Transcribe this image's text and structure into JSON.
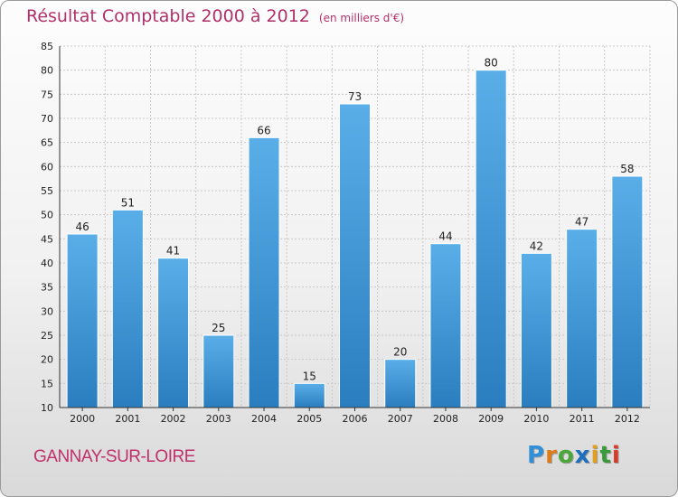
{
  "header": {
    "title": "Résultat Comptable 2000 à 2012",
    "subtitle": "(en milliers d'€)"
  },
  "footer": {
    "city": "GANNAY-SUR-LOIRE",
    "logo_letters": [
      {
        "char": "P",
        "color": "#2f8fd8"
      },
      {
        "char": "r",
        "color": "#e07b1a"
      },
      {
        "char": "o",
        "color": "#4aa83a"
      },
      {
        "char": "x",
        "color": "#1f6fbf"
      },
      {
        "char": "i",
        "color": "#e0a020"
      },
      {
        "char": "t",
        "color": "#3a9a3a"
      },
      {
        "char": "i",
        "color": "#d83a2a"
      }
    ]
  },
  "colors": {
    "bar_top": "#5aaee8",
    "bar_bottom": "#2a7ebf",
    "grid": "#c8c8c8",
    "title": "#b0306a"
  },
  "chart_data": {
    "type": "bar",
    "title": "Résultat Comptable 2000 à 2012",
    "subtitle": "(en milliers d'€)",
    "xlabel": "",
    "ylabel": "",
    "categories": [
      "2000",
      "2001",
      "2002",
      "2003",
      "2004",
      "2005",
      "2006",
      "2007",
      "2008",
      "2009",
      "2010",
      "2011",
      "2012"
    ],
    "values": [
      46,
      51,
      41,
      25,
      66,
      15,
      73,
      20,
      44,
      80,
      42,
      47,
      58
    ],
    "ylim": [
      10,
      85
    ],
    "yticks": [
      10,
      15,
      20,
      25,
      30,
      35,
      40,
      45,
      50,
      55,
      60,
      65,
      70,
      75,
      80,
      85
    ],
    "grid": true,
    "legend": "none"
  }
}
